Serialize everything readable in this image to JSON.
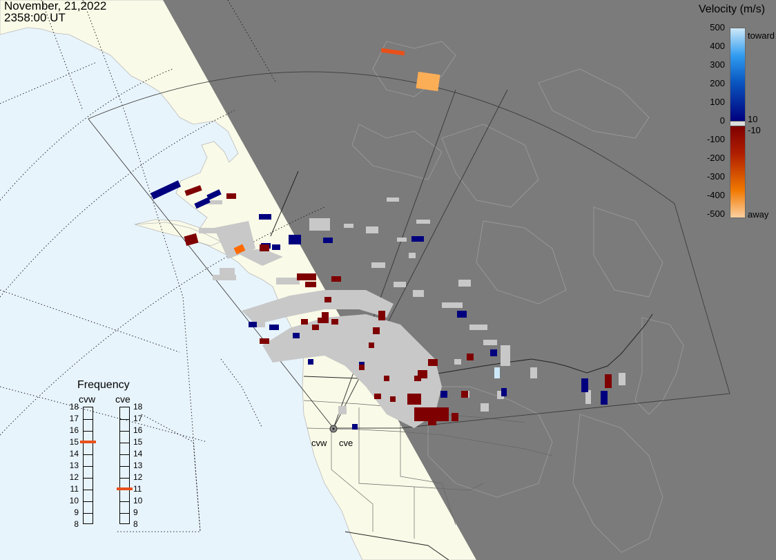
{
  "header": {
    "date": "November, 21,2022",
    "time": "2358:00 UT"
  },
  "colors": {
    "ocean": "#e8f4fc",
    "land": "#fafae8",
    "night": "#7b7b7b",
    "ground_scatter": "#c8c8c8",
    "toward_dark": "#00007f",
    "toward_light": "#cde8f8",
    "away_dark": "#7f0000",
    "away_orange": "#ff6a00",
    "away_light": "#fcbf86",
    "frequency_marker": "#e8501a"
  },
  "velocity_scale": {
    "title": "Velocity (m/s)",
    "ticks": [
      "500",
      "400",
      "300",
      "200",
      "100",
      "0",
      "-100",
      "-200",
      "-300",
      "-400",
      "-500"
    ],
    "threshold_top": "10",
    "threshold_bottom": "-10",
    "toward_label": "toward",
    "away_label": "away"
  },
  "frequency_panel": {
    "title": "Frequency",
    "radars": [
      {
        "name": "cvw",
        "value_mhz": 15
      },
      {
        "name": "cve",
        "value_mhz": 11
      }
    ],
    "ticks": [
      "18",
      "17",
      "16",
      "15",
      "14",
      "13",
      "12",
      "11",
      "10",
      "9",
      "8"
    ]
  },
  "radar_sites": {
    "west": "cvw",
    "east": "cve"
  }
}
